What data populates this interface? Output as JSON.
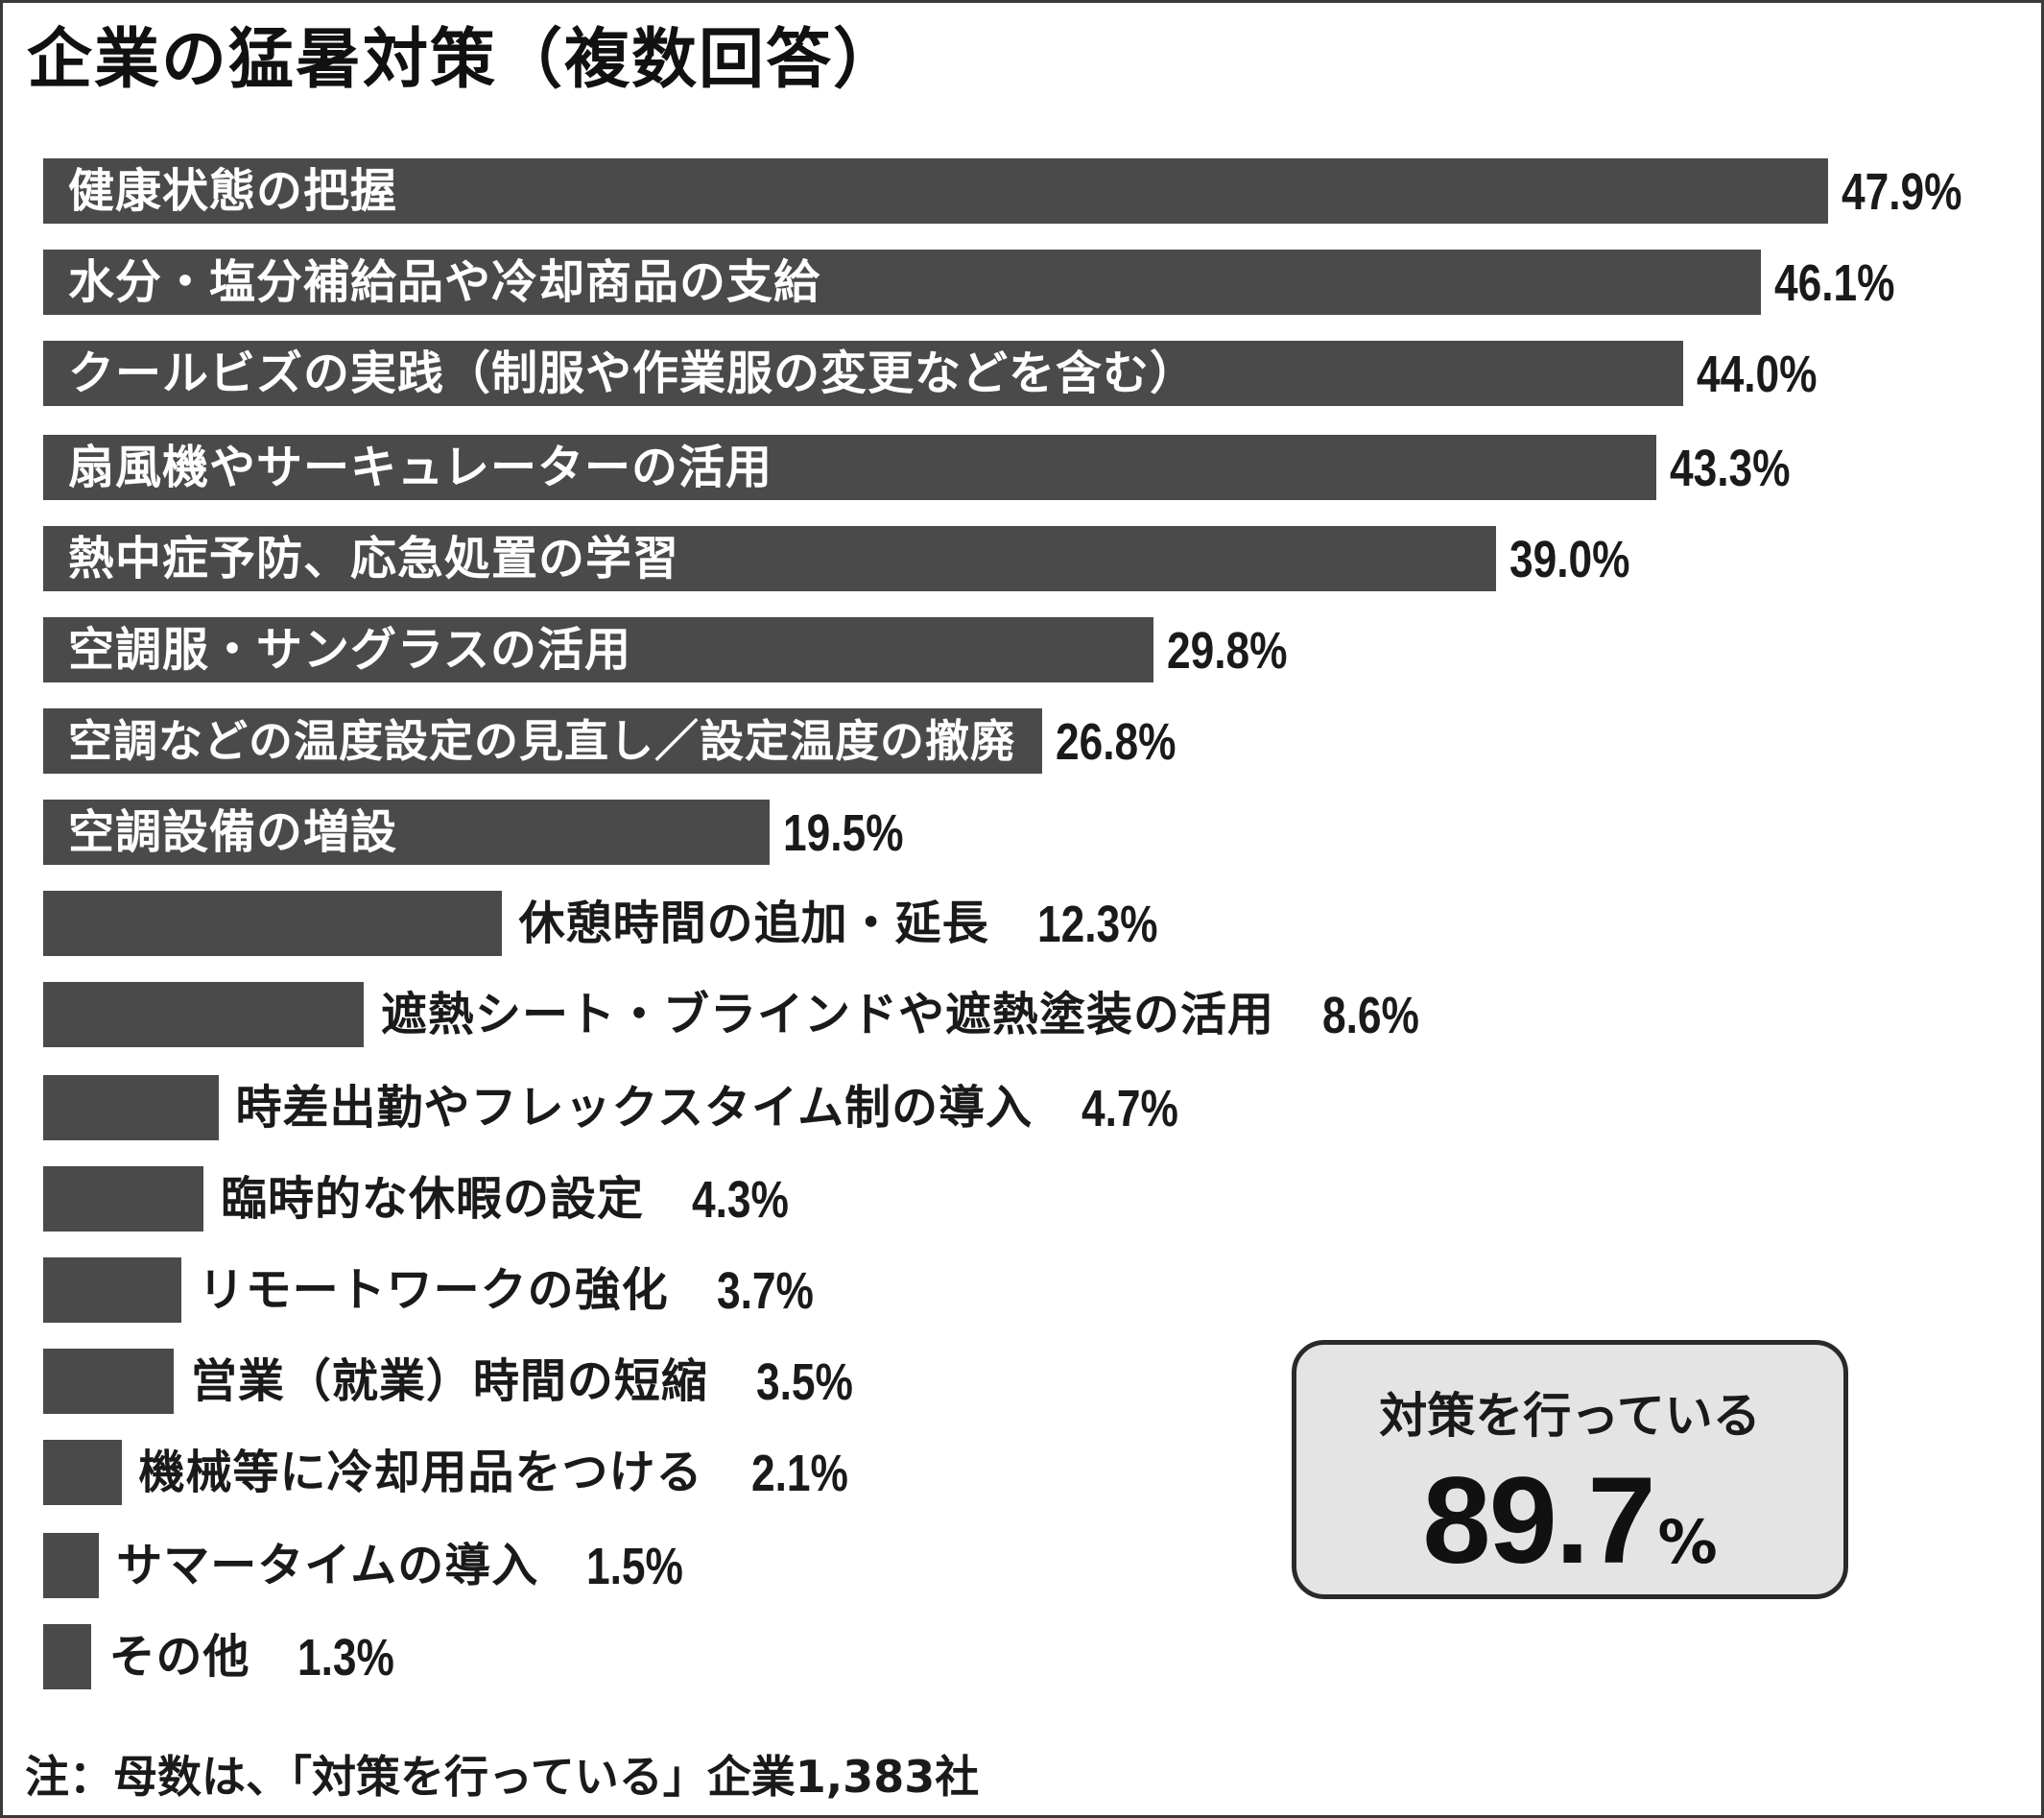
{
  "colors": {
    "bar": "#4a4a4a",
    "background": "#ffffff",
    "box": "#e4e4e4"
  },
  "chart_data": {
    "type": "bar",
    "orientation": "horizontal",
    "title": "企業の猛暑対策（複数回答）",
    "unit": "%",
    "xlim": [
      0,
      50
    ],
    "grid": false,
    "legend": "none",
    "categories": [
      "健康状態の把握",
      "水分・塩分補給品や冷却商品の支給",
      "クールビズの実践（制服や作業服の変更などを含む）",
      "扇風機やサーキュレーターの活用",
      "熱中症予防、応急処置の学習",
      "空調服・サングラスの活用",
      "空調などの温度設定の見直し／設定温度の撤廃",
      "空調設備の増設",
      "休憩時間の追加・延長",
      "遮熱シート・ブラインドや遮熱塗装の活用",
      "時差出勤やフレックスタイム制の導入",
      "臨時的な休暇の設定",
      "リモートワークの強化",
      "営業（就業）時間の短縮",
      "機械等に冷却用品をつける",
      "サマータイムの導入",
      "その他"
    ],
    "values": [
      47.9,
      46.1,
      44.0,
      43.3,
      39.0,
      29.8,
      26.8,
      19.5,
      12.3,
      8.6,
      4.7,
      4.3,
      3.7,
      3.5,
      2.1,
      1.5,
      1.3
    ],
    "value_labels": [
      "47.9%",
      "46.1%",
      "44.0%",
      "43.3%",
      "39.0%",
      "29.8%",
      "26.8%",
      "19.5%",
      "12.3%",
      "8.6%",
      "4.7%",
      "4.3%",
      "3.7%",
      "3.5%",
      "2.1%",
      "1.5%",
      "1.3%"
    ]
  },
  "summary": {
    "label": "対策を行っている",
    "value": "89.7",
    "unit": "%"
  },
  "note": "注：母数は、「対策を行っている」企業1,383社"
}
